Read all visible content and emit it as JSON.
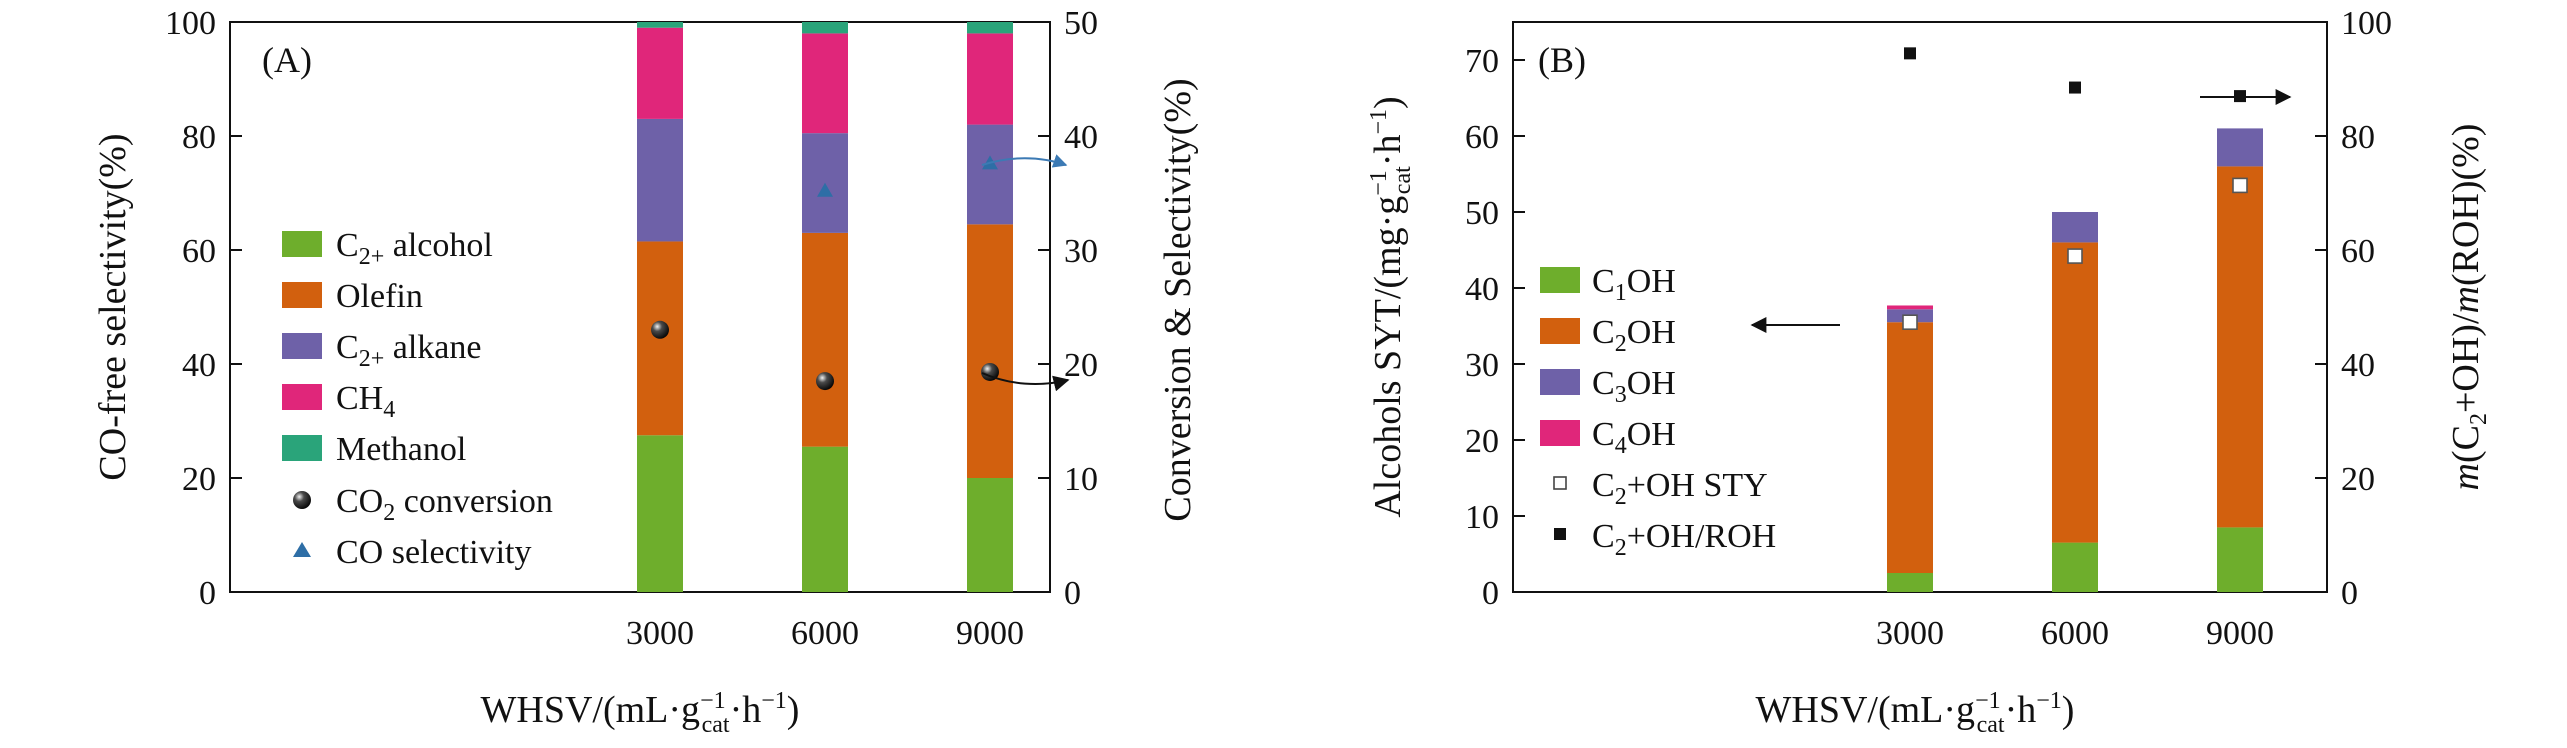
{
  "chart_data": [
    {
      "panel_label": "(A)",
      "type": "bar",
      "stacked": true,
      "categories": [
        "3000",
        "6000",
        "9000"
      ],
      "xlabel": {
        "main": "WHSV/(mL·g",
        "sup": "−1",
        "sub": "cat",
        "tail": "·h",
        "sup2": "−1",
        "close": ")"
      },
      "ylabel": "CO-free selectivity(%)",
      "ylabel_right": "Conversion & Selectivity(%)",
      "ylim": [
        0,
        100
      ],
      "ylim_right": [
        0,
        50
      ],
      "yticks": [
        "0",
        "20",
        "40",
        "60",
        "80",
        "100"
      ],
      "yticks_right": [
        "0",
        "10",
        "20",
        "30",
        "40",
        "50"
      ],
      "series": [
        {
          "name": "C2+ alcohol",
          "label_main": "C",
          "label_sub": "2+",
          "label_tail": " alcohol",
          "color": "#6eae2c",
          "values": [
            27.5,
            25.5,
            20
          ]
        },
        {
          "name": "Olefin",
          "label_main": "Olefin",
          "label_sub": "",
          "label_tail": "",
          "color": "#d2600e",
          "values": [
            34,
            37.5,
            44.5
          ]
        },
        {
          "name": "C2+ alkane",
          "label_main": "C",
          "label_sub": "2+",
          "label_tail": " alkane",
          "color": "#6e61a8",
          "values": [
            21.5,
            17.5,
            17.5
          ]
        },
        {
          "name": "CH4",
          "label_main": "CH",
          "label_sub": "4",
          "label_tail": "",
          "color": "#e0267a",
          "values": [
            16,
            17.5,
            16
          ]
        },
        {
          "name": "Methanol",
          "label_main": "Methanol",
          "label_sub": "",
          "label_tail": "",
          "color": "#2aa47a",
          "values": [
            1,
            2,
            2
          ]
        }
      ],
      "markers": [
        {
          "name": "CO2 conversion",
          "label_main": "CO",
          "label_sub": "2",
          "label_tail": " conversion",
          "shape": "sphere",
          "axis": "right",
          "values": [
            23,
            18.5,
            19.3
          ]
        },
        {
          "name": "CO selectivity",
          "label_main": "CO selectivity",
          "label_sub": "",
          "label_tail": "",
          "shape": "triangle",
          "axis": "right",
          "color": "#2e6ea6",
          "values": [
            null,
            35.2,
            37.6
          ]
        }
      ]
    },
    {
      "panel_label": "(B)",
      "type": "bar",
      "stacked": true,
      "categories": [
        "3000",
        "6000",
        "9000"
      ],
      "xlabel": {
        "main": "WHSV/(mL·g",
        "sup": "−1",
        "sub": "cat",
        "tail": "·h",
        "sup2": "−1",
        "close": ")"
      },
      "ylabel": {
        "main": "Alcohols SYT/(mg·g",
        "sup": "−1",
        "sub": "cat",
        "tail": "·h",
        "sup2": "−1",
        "close": ")"
      },
      "ylabel_right": {
        "a": "m",
        "b": "(C",
        "sub": "2",
        "c": "+OH)/",
        "d": "m",
        "e": "(ROH)(%)"
      },
      "ylim": [
        0,
        75
      ],
      "ylim_right": [
        0,
        100
      ],
      "yticks": [
        "0",
        "10",
        "20",
        "30",
        "40",
        "50",
        "60",
        "70"
      ],
      "yticks_right": [
        "0",
        "20",
        "40",
        "60",
        "80",
        "100"
      ],
      "series": [
        {
          "name": "C1OH",
          "label_main": "C",
          "label_sub": "1",
          "label_tail": "OH",
          "color": "#6eae2c",
          "values": [
            2.5,
            6.5,
            8.5
          ]
        },
        {
          "name": "C2OH",
          "label_main": "C",
          "label_sub": "2",
          "label_tail": "OH",
          "color": "#d2600e",
          "values": [
            33,
            39.5,
            47.5
          ]
        },
        {
          "name": "C3OH",
          "label_main": "C",
          "label_sub": "3",
          "label_tail": "OH",
          "color": "#6e61a8",
          "values": [
            1.7,
            4,
            5
          ]
        },
        {
          "name": "C4OH",
          "label_main": "C",
          "label_sub": "4",
          "label_tail": "OH",
          "color": "#e0267a",
          "values": [
            0.5,
            0,
            0
          ]
        }
      ],
      "markers": [
        {
          "name": "C2+OH STY",
          "label_main": "C",
          "label_sub": "2",
          "label_tail": "+OH STY",
          "shape": "open-square",
          "axis": "left",
          "values": [
            35.5,
            44.2,
            53.5
          ]
        },
        {
          "name": "C2+OH/ROH",
          "label_main": "C",
          "label_sub": "2",
          "label_tail": "+OH/ROH",
          "shape": "filled-square",
          "axis": "right",
          "values": [
            94.5,
            88.5,
            87
          ]
        }
      ]
    }
  ]
}
